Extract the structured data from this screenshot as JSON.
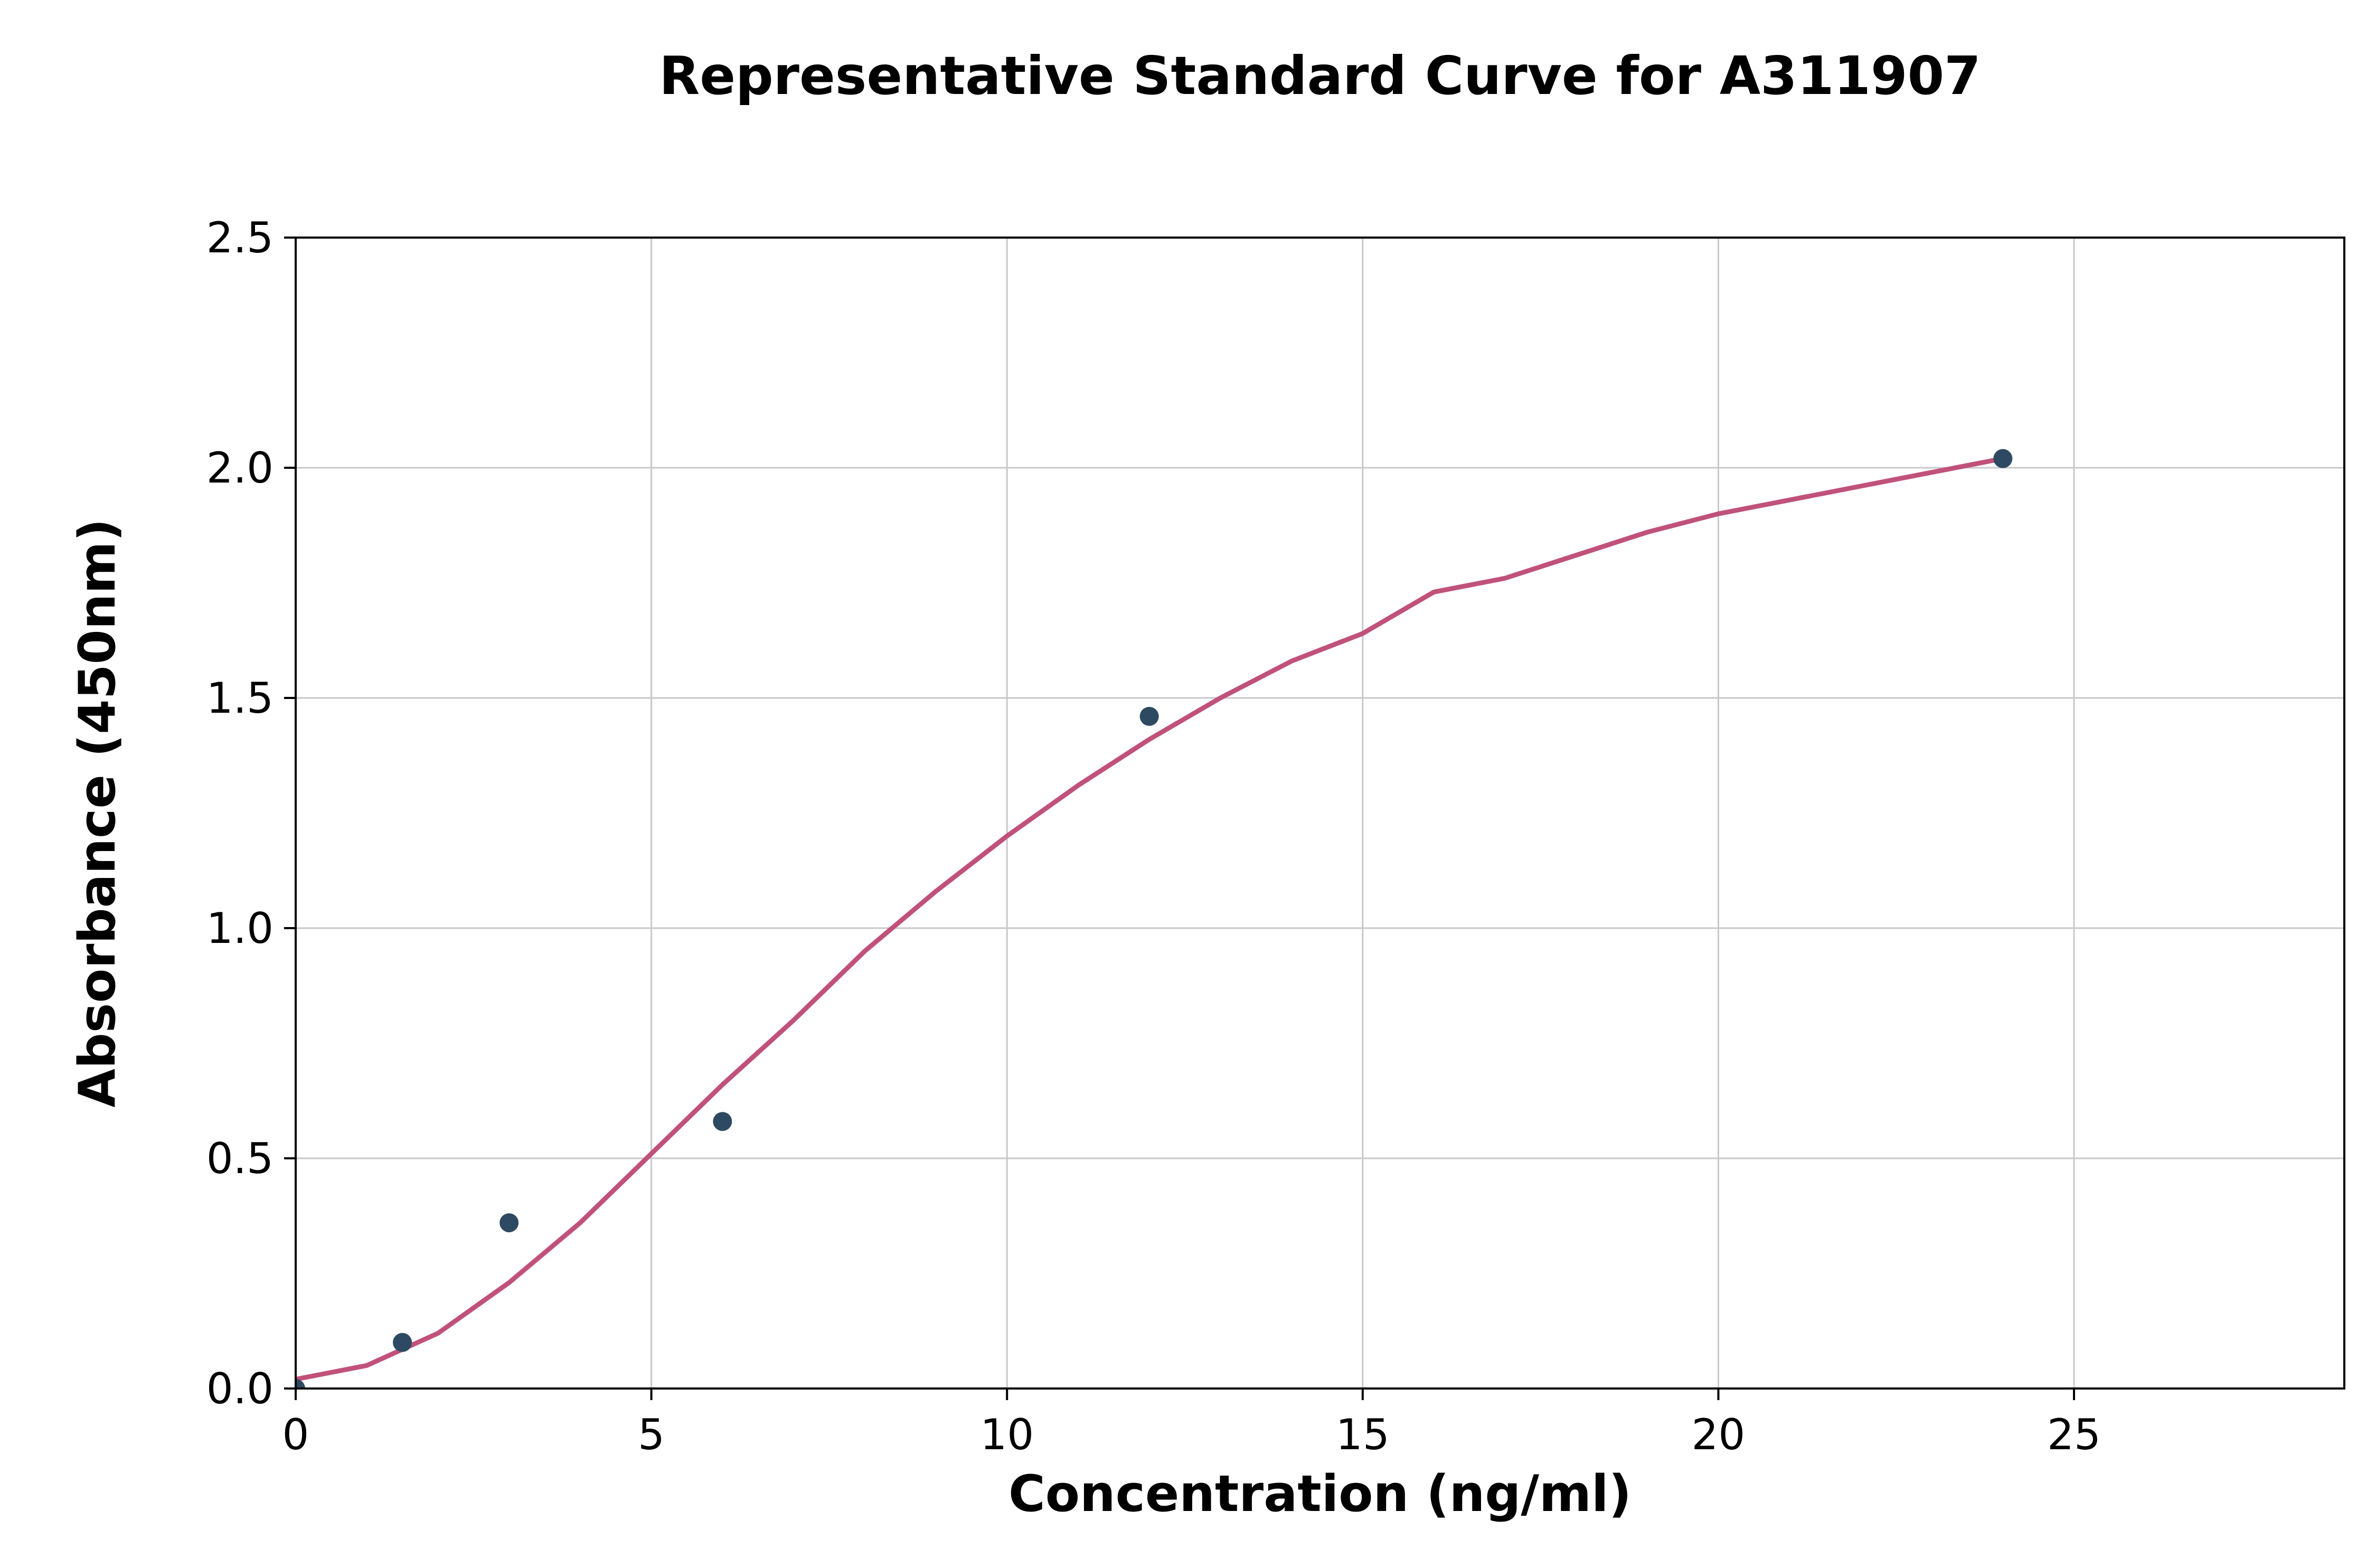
{
  "chart_data": {
    "type": "scatter",
    "title": "Representative Standard Curve for A311907",
    "xlabel": "Concentration (ng/ml)",
    "ylabel": "Absorbance (450nm)",
    "xlim": [
      0,
      28.8
    ],
    "ylim": [
      0,
      2.5
    ],
    "grid": true,
    "legend": "none",
    "x_ticks": [
      0,
      5,
      10,
      15,
      20,
      25
    ],
    "x_tick_labels": [
      "0",
      "5",
      "10",
      "15",
      "20",
      "25"
    ],
    "y_ticks": [
      0.0,
      0.5,
      1.0,
      1.5,
      2.0,
      2.5
    ],
    "y_tick_labels": [
      "0.0",
      "0.5",
      "1.0",
      "1.5",
      "2.0",
      "2.5"
    ],
    "points": [
      [
        0,
        0.0
      ],
      [
        1.5,
        0.1
      ],
      [
        3,
        0.36
      ],
      [
        6,
        0.58
      ],
      [
        12,
        1.46
      ],
      [
        24,
        2.02
      ]
    ],
    "fit_curve": [
      [
        0,
        0.02
      ],
      [
        1,
        0.05
      ],
      [
        2,
        0.12
      ],
      [
        3,
        0.23
      ],
      [
        4,
        0.36
      ],
      [
        5,
        0.51
      ],
      [
        6,
        0.66
      ],
      [
        7,
        0.8
      ],
      [
        8,
        0.95
      ],
      [
        9,
        1.08
      ],
      [
        10,
        1.2
      ],
      [
        11,
        1.31
      ],
      [
        12,
        1.41
      ],
      [
        13,
        1.5
      ],
      [
        14,
        1.58
      ],
      [
        15,
        1.64
      ],
      [
        16,
        1.73
      ],
      [
        17,
        1.76
      ],
      [
        18,
        1.81
      ],
      [
        19,
        1.86
      ],
      [
        20,
        1.9
      ],
      [
        21,
        1.93
      ],
      [
        22,
        1.96
      ],
      [
        23,
        1.99
      ],
      [
        24,
        2.02
      ]
    ],
    "point_color": "#2e4a62",
    "curve_color": "#c0527a",
    "grid_color": "#c8c8c8",
    "axis_color": "#000000",
    "text_color": "#000000",
    "background_color": "#ffffff"
  }
}
